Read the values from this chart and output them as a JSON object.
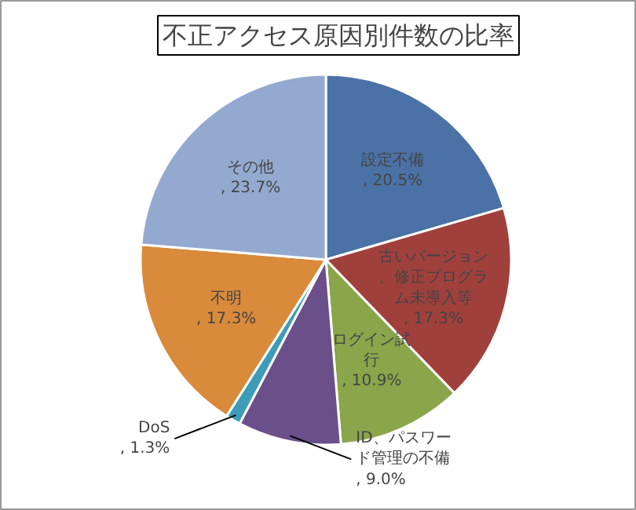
{
  "chart_data": {
    "type": "pie",
    "title": "不正アクセス原因別件数の比率",
    "categories": [
      "設定不備",
      "古いバージョン、修正プログラム未導入等",
      "ログイン試行",
      "ID、パスワード管理の不備",
      "DoS",
      "不明",
      "その他"
    ],
    "values": [
      20.5,
      17.3,
      10.9,
      9.0,
      1.3,
      17.3,
      23.7
    ],
    "value_labels": [
      ", 20.5%",
      ", 17.3%",
      ", 10.9%",
      ", 9.0%",
      ", 1.3%",
      ", 17.3%",
      ", 23.7%"
    ],
    "colors": [
      "#4a72a6",
      "#a0403c",
      "#8aa54a",
      "#6a4f8a",
      "#3d9cb8",
      "#d98a3a",
      "#93a9cf"
    ]
  }
}
